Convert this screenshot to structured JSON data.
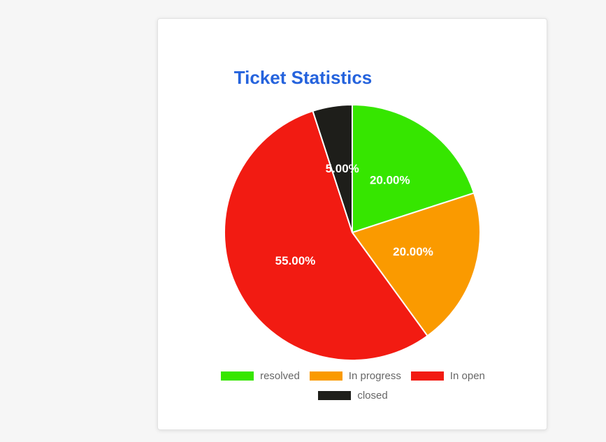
{
  "chart_data": {
    "type": "pie",
    "title": "Ticket Statistics",
    "title_color": "#2563dd",
    "slices": [
      {
        "label": "resolved",
        "value": 20,
        "display": "20.00%",
        "color": "#36e600"
      },
      {
        "label": "In progress",
        "value": 20,
        "display": "20.00%",
        "color": "#fa9a00"
      },
      {
        "label": "In open",
        "value": 55,
        "display": "55.00%",
        "color": "#f21b12"
      },
      {
        "label": "closed",
        "value": 5,
        "display": "5.00%",
        "color": "#1e1e1a"
      }
    ],
    "legend_position": "bottom",
    "start_angle": "top, clockwise"
  }
}
